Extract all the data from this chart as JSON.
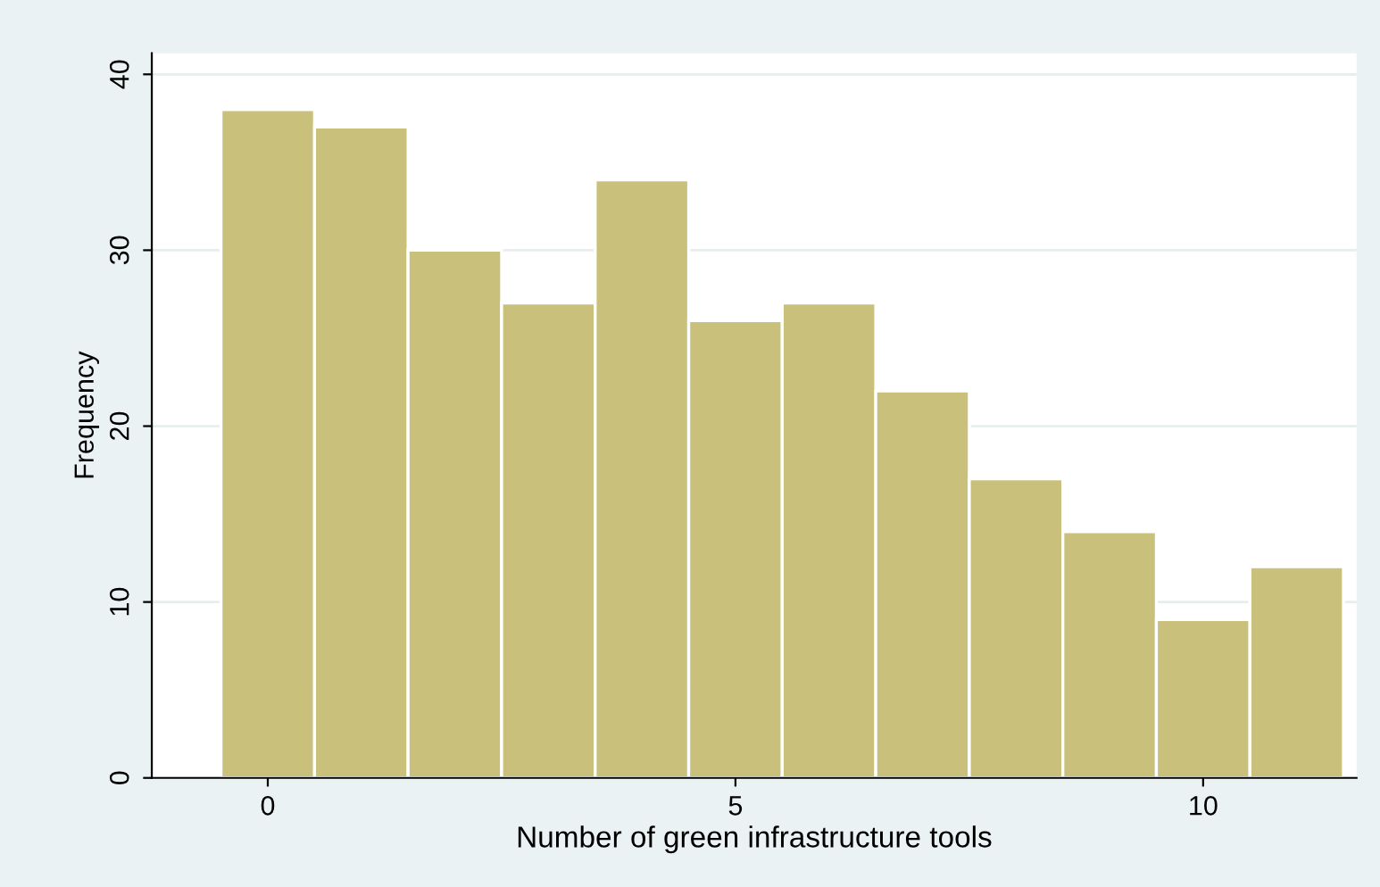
{
  "chart_data": {
    "type": "histogram",
    "xlabel": "Number of green infrastructure tools",
    "ylabel": "Frequency",
    "bins": [
      -0.5,
      0.5,
      1.5,
      2.5,
      3.5,
      4.5,
      5.5,
      6.5,
      7.5,
      8.5,
      9.5,
      10.5,
      11.5
    ],
    "values": [
      38,
      37,
      30,
      27,
      34,
      26,
      27,
      22,
      17,
      14,
      9,
      12
    ],
    "color": "#c9c07c",
    "xlim": [
      -1.24,
      11.64
    ],
    "xticks": [
      0,
      5,
      10
    ],
    "ylim": [
      0,
      41.2
    ],
    "yticks": [
      0,
      10,
      20,
      30,
      40
    ],
    "grid": "y"
  }
}
